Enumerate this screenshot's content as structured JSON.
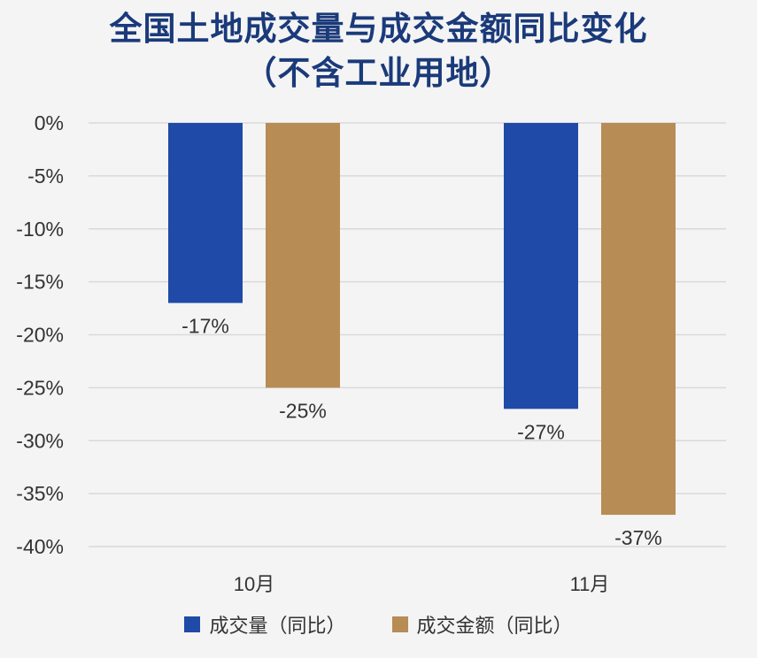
{
  "title": {
    "line1": "全国土地成交量与成交金额同比变化",
    "line2": "（不含工业用地）"
  },
  "colors": {
    "series_volume": "#1f4aa8",
    "series_amount": "#b88c55",
    "grid": "#d9d9d9"
  },
  "chart_data": {
    "type": "bar",
    "title": "全国土地成交量与成交金额同比变化（不含工业用地）",
    "categories": [
      "10月",
      "11月"
    ],
    "series": [
      {
        "name": "成交量（同比）",
        "values": [
          -17,
          -27
        ],
        "labels": [
          "-17%",
          "-27%"
        ]
      },
      {
        "name": "成交金额（同比）",
        "values": [
          -25,
          -37
        ],
        "labels": [
          "-25%",
          "-37%"
        ]
      }
    ],
    "ylim": [
      -40,
      0
    ],
    "yticks": [
      0,
      -5,
      -10,
      -15,
      -20,
      -25,
      -30,
      -35,
      -40
    ],
    "ytick_labels": [
      "0%",
      "-5%",
      "-10%",
      "-15%",
      "-20%",
      "-25%",
      "-30%",
      "-35%",
      "-40%"
    ],
    "xlabel": "",
    "ylabel": "",
    "grid": true,
    "legend": "bottom"
  }
}
